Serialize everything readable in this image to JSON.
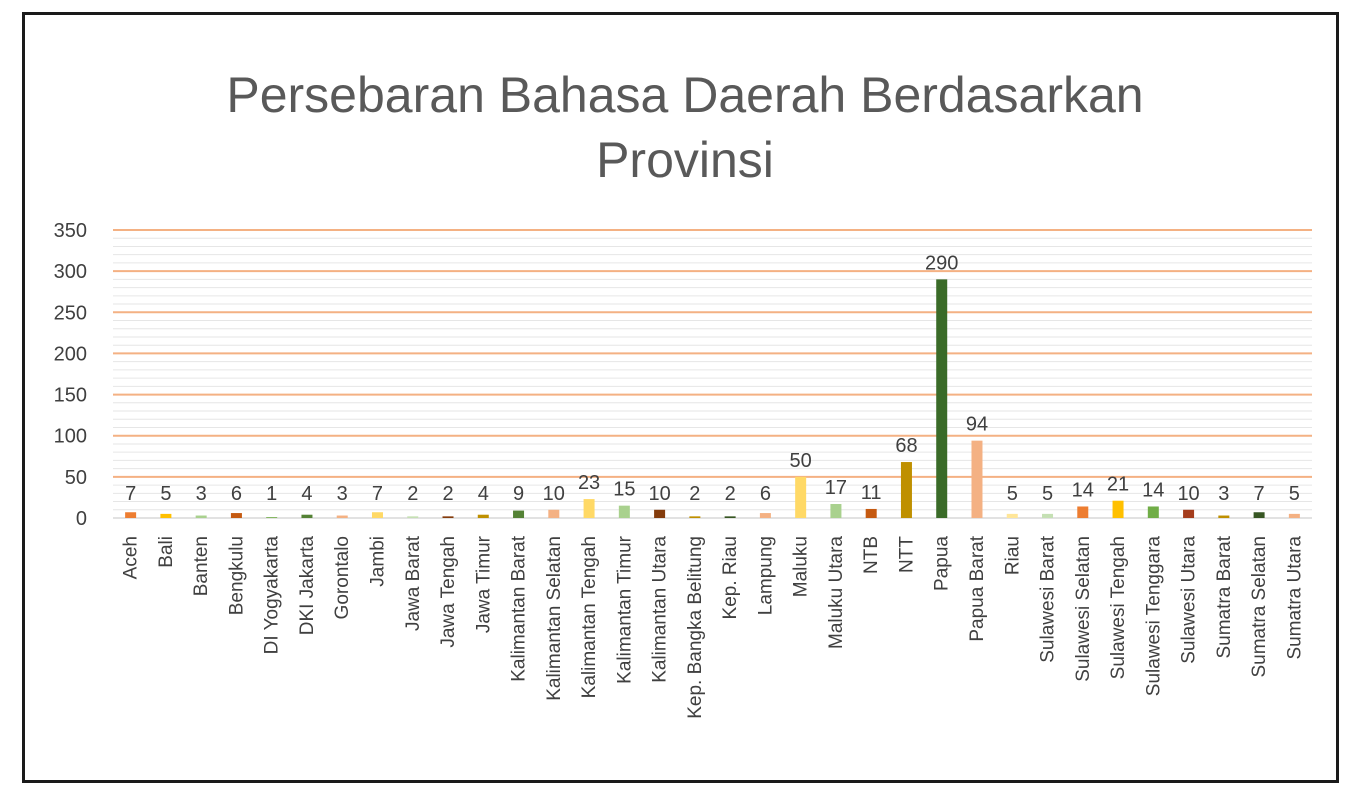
{
  "chart_data": {
    "type": "bar",
    "title": "Persebaran Bahasa Daerah Berdasarkan Provinsi",
    "title_lines": [
      "Persebaran Bahasa Daerah Berdasarkan",
      "Provinsi"
    ],
    "xlabel": "",
    "ylabel": "",
    "ylim": [
      0,
      350
    ],
    "yticks": [
      0,
      50,
      100,
      150,
      200,
      250,
      300,
      350
    ],
    "grid": true,
    "legend": "none",
    "categories": [
      "Aceh",
      "Bali",
      "Banten",
      "Bengkulu",
      "DI Yogyakarta",
      "DKI Jakarta",
      "Gorontalo",
      "Jambi",
      "Jawa Barat",
      "Jawa Tengah",
      "Jawa Timur",
      "Kalimantan Barat",
      "Kalimantan Selatan",
      "Kalimantan Tengah",
      "Kalimantan Timur",
      "Kalimantan Utara",
      "Kep. Bangka Belitung",
      "Kep. Riau",
      "Lampung",
      "Maluku",
      "Maluku Utara",
      "NTB",
      "NTT",
      "Papua",
      "Papua Barat",
      "Riau",
      "Sulawesi Barat",
      "Sulawesi Selatan",
      "Sulawesi Tengah",
      "Sulawesi Tenggara",
      "Sulawesi Utara",
      "Sumatra Barat",
      "Sumatra Selatan",
      "Sumatra Utara"
    ],
    "values": [
      7,
      5,
      3,
      6,
      1,
      4,
      3,
      7,
      2,
      2,
      4,
      9,
      10,
      23,
      15,
      10,
      2,
      2,
      6,
      50,
      17,
      11,
      68,
      290,
      94,
      5,
      5,
      14,
      21,
      14,
      10,
      3,
      7,
      5
    ],
    "data_labels": [
      "7",
      "5",
      "3",
      "6",
      "1",
      "4",
      "3",
      "7",
      "2",
      "2",
      "4",
      "9",
      "10",
      "23",
      "15",
      "10",
      "2",
      "2",
      "6",
      "50",
      "17",
      "11",
      "68",
      "290",
      "94",
      "5",
      "5",
      "14",
      "21",
      "14",
      "10",
      "3",
      "7",
      "5"
    ],
    "colors": [
      "#ed7d31",
      "#ffc000",
      "#a9d18e",
      "#c55a11",
      "#70ad47",
      "#548235",
      "#f4b183",
      "#ffd966",
      "#c5e0b4",
      "#843c0c",
      "#bf9000",
      "#548235",
      "#f4b183",
      "#ffd966",
      "#a9d18e",
      "#843c0c",
      "#bf9000",
      "#375623",
      "#f4b183",
      "#ffd966",
      "#a9d18e",
      "#c55a11",
      "#bf9000",
      "#3a6b28",
      "#f4b183",
      "#ffe699",
      "#c5e0b4",
      "#ed7d31",
      "#ffc000",
      "#70ad47",
      "#a43c1c",
      "#bf9000",
      "#375623",
      "#f4b183"
    ],
    "major_grid_color": "#f4b183",
    "minor_grid_color": "#e6e6e6"
  }
}
